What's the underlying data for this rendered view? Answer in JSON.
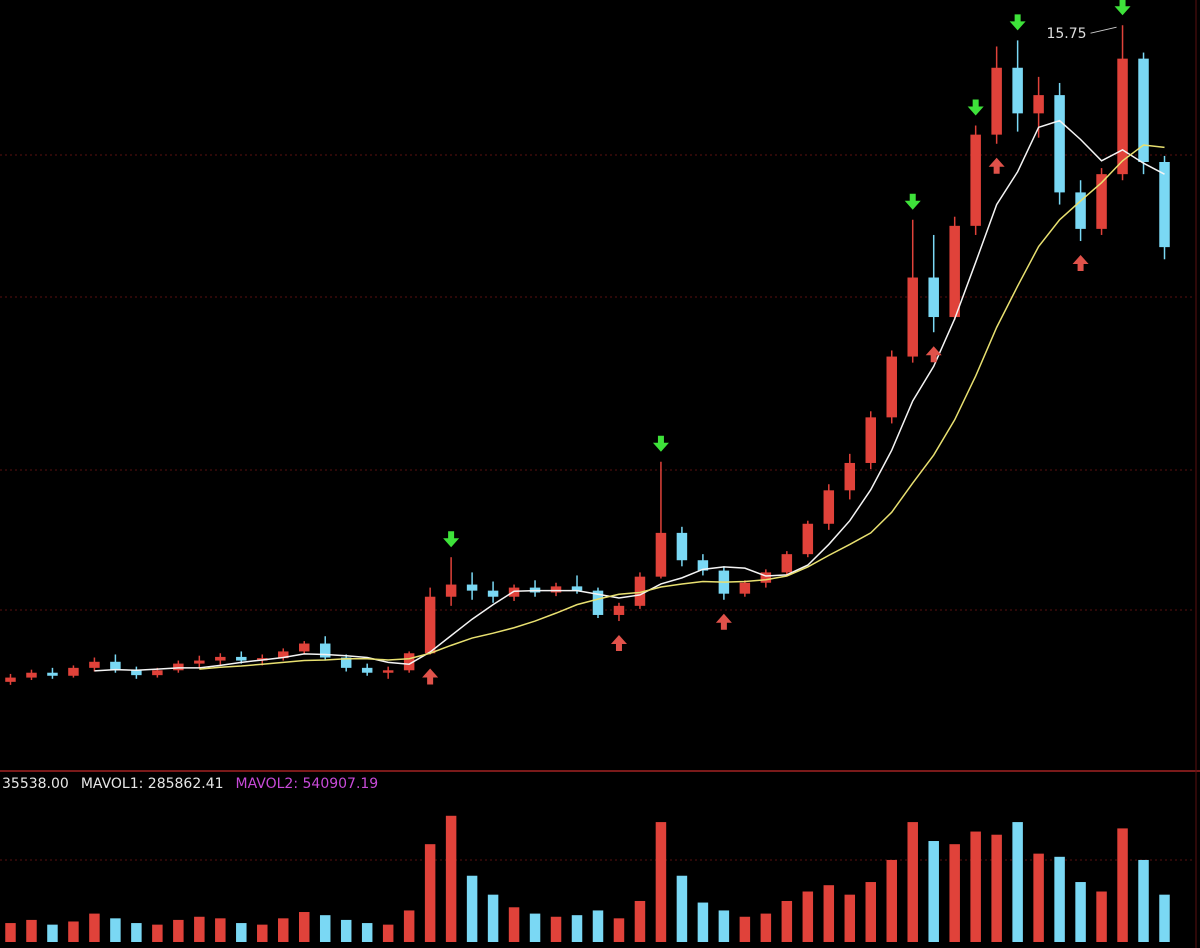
{
  "chart_data": {
    "type": "candlestick",
    "ylim": [
      3.5,
      16.0
    ],
    "volume_ylim": [
      0,
      900000
    ],
    "up_color": "#e0423a",
    "down_color": "#7ad8f4",
    "open": [
      4.95,
      5.02,
      5.1,
      5.05,
      5.18,
      5.28,
      5.15,
      5.06,
      5.14,
      5.25,
      5.3,
      5.36,
      5.3,
      5.34,
      5.45,
      5.58,
      5.35,
      5.18,
      5.1,
      5.14,
      5.42,
      6.35,
      6.55,
      6.45,
      6.35,
      6.5,
      6.42,
      6.52,
      6.45,
      6.05,
      6.2,
      6.68,
      7.4,
      6.95,
      6.78,
      6.4,
      6.58,
      6.75,
      7.05,
      7.55,
      8.1,
      8.55,
      9.3,
      10.3,
      11.6,
      10.95,
      12.45,
      13.95,
      15.05,
      14.3,
      14.6,
      13.0,
      12.4,
      13.3,
      15.2,
      13.5
    ],
    "high": [
      5.08,
      5.15,
      5.18,
      5.22,
      5.35,
      5.4,
      5.2,
      5.18,
      5.3,
      5.38,
      5.42,
      5.45,
      5.4,
      5.5,
      5.62,
      5.7,
      5.4,
      5.25,
      5.2,
      5.45,
      6.5,
      7.0,
      6.75,
      6.6,
      6.55,
      6.62,
      6.58,
      6.7,
      6.5,
      6.25,
      6.75,
      8.57,
      7.5,
      7.05,
      6.85,
      6.62,
      6.8,
      7.1,
      7.6,
      8.2,
      8.7,
      9.4,
      10.4,
      12.55,
      12.3,
      12.6,
      14.1,
      15.4,
      15.5,
      14.9,
      14.8,
      13.2,
      13.4,
      15.75,
      15.3,
      13.6
    ],
    "low": [
      4.9,
      4.98,
      5.0,
      5.02,
      5.12,
      5.1,
      5.0,
      5.02,
      5.1,
      5.18,
      5.22,
      5.25,
      5.22,
      5.3,
      5.4,
      5.3,
      5.12,
      5.05,
      5.0,
      5.1,
      5.4,
      6.2,
      6.3,
      6.25,
      6.28,
      6.35,
      6.36,
      6.4,
      6.0,
      5.95,
      6.15,
      6.65,
      6.85,
      6.7,
      6.3,
      6.35,
      6.5,
      6.7,
      7.0,
      7.45,
      7.95,
      8.45,
      9.2,
      10.2,
      10.7,
      10.9,
      12.3,
      13.8,
      14.0,
      13.9,
      12.8,
      12.2,
      12.3,
      13.2,
      13.3,
      11.9
    ],
    "close": [
      5.02,
      5.1,
      5.05,
      5.18,
      5.28,
      5.15,
      5.06,
      5.14,
      5.25,
      5.3,
      5.36,
      5.3,
      5.34,
      5.45,
      5.58,
      5.35,
      5.18,
      5.1,
      5.14,
      5.42,
      6.35,
      6.55,
      6.45,
      6.35,
      6.5,
      6.42,
      6.52,
      6.45,
      6.05,
      6.2,
      6.68,
      7.4,
      6.95,
      6.78,
      6.4,
      6.58,
      6.75,
      7.05,
      7.55,
      8.1,
      8.55,
      9.3,
      10.3,
      11.6,
      10.95,
      12.45,
      13.95,
      15.05,
      14.3,
      14.6,
      13.0,
      12.4,
      13.3,
      15.2,
      13.5,
      12.1
    ],
    "volume": [
      120000,
      140000,
      110000,
      130000,
      180000,
      150000,
      120000,
      110000,
      140000,
      160000,
      150000,
      120000,
      110000,
      150000,
      190000,
      170000,
      140000,
      120000,
      110000,
      200000,
      620000,
      800000,
      420000,
      300000,
      220000,
      180000,
      160000,
      170000,
      200000,
      150000,
      260000,
      760000,
      420000,
      250000,
      200000,
      160000,
      180000,
      260000,
      320000,
      360000,
      300000,
      380000,
      520000,
      760000,
      640000,
      620000,
      700000,
      680000,
      760000,
      560000,
      540000,
      380000,
      320000,
      720000,
      520000,
      300000
    ],
    "ma_lines": [
      {
        "color": "#f4f4f4",
        "values": [
          null,
          null,
          null,
          null,
          5.13,
          5.15,
          5.14,
          5.16,
          5.18,
          5.18,
          5.22,
          5.27,
          5.31,
          5.35,
          5.41,
          5.4,
          5.38,
          5.35,
          5.27,
          5.24,
          5.44,
          5.71,
          5.98,
          6.22,
          6.44,
          6.45,
          6.45,
          6.45,
          6.39,
          6.33,
          6.38,
          6.56,
          6.66,
          6.8,
          6.84,
          6.82,
          6.69,
          6.71,
          6.87,
          7.21,
          7.6,
          8.11,
          8.76,
          9.57,
          10.14,
          10.92,
          11.85,
          12.8,
          13.34,
          14.07,
          14.18,
          13.87,
          13.52,
          13.7,
          13.48,
          13.3
        ]
      },
      {
        "color": "#e8e070",
        "values": [
          null,
          null,
          null,
          null,
          null,
          null,
          null,
          null,
          null,
          5.16,
          5.19,
          5.21,
          5.24,
          5.27,
          5.3,
          5.31,
          5.33,
          5.33,
          5.31,
          5.33,
          5.42,
          5.55,
          5.67,
          5.75,
          5.84,
          5.95,
          6.08,
          6.22,
          6.31,
          6.39,
          6.42,
          6.51,
          6.56,
          6.6,
          6.59,
          6.6,
          6.63,
          6.69,
          6.84,
          7.03,
          7.21,
          7.4,
          7.74,
          8.22,
          8.68,
          9.26,
          9.98,
          10.78,
          11.46,
          12.11,
          12.55,
          12.86,
          13.16,
          13.52,
          13.78,
          13.74
        ]
      }
    ],
    "sell_signals": [
      21,
      31,
      43,
      46,
      48,
      53
    ],
    "buy_signals": [
      20,
      29,
      34,
      44,
      47,
      51
    ],
    "volume_legend": [
      {
        "text": "35538.00",
        "color": "#e6e6e6"
      },
      {
        "text": "MAVOL1: 285862.41",
        "color": "#e6e6e6"
      },
      {
        "text": "MAVOL2: 540907.19",
        "color": "#c84ad8"
      }
    ]
  }
}
